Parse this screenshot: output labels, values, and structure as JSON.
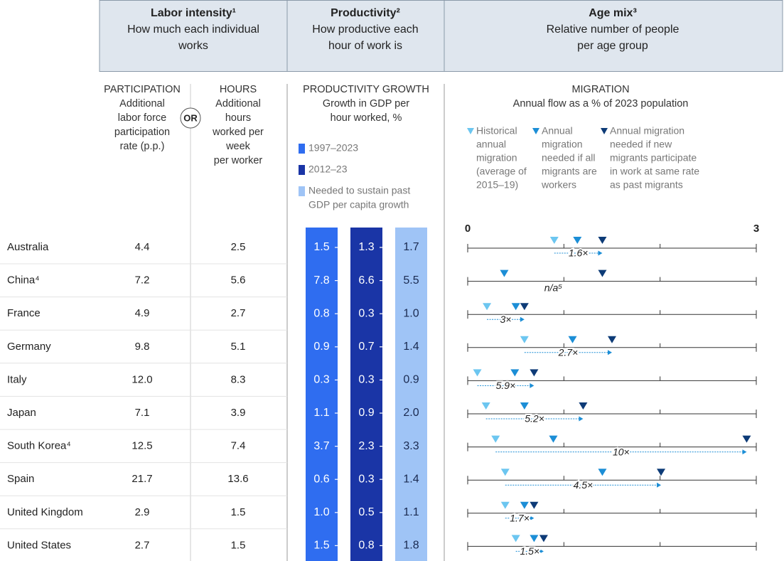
{
  "header": {
    "labor": {
      "title": "Labor intensity¹",
      "subtitle": [
        "How much each individual",
        "works"
      ]
    },
    "productivity": {
      "title": "Productivity²",
      "subtitle": [
        "How productive each",
        "hour of work is"
      ]
    },
    "age": {
      "title": "Age mix³",
      "subtitle": [
        "Relative number of people",
        "per age group"
      ]
    }
  },
  "subheaders": {
    "participation": [
      "PARTICIPATION",
      "Additional",
      "labor force",
      "participation",
      "rate (p.p.)"
    ],
    "or": "OR",
    "hours": [
      "HOURS",
      "Additional",
      "hours",
      "worked per",
      "week",
      "per worker"
    ],
    "productivity": [
      "PRODUCTIVITY GROWTH",
      "Growth in GDP per",
      "hour worked, %"
    ],
    "migration": [
      "MIGRATION",
      "Annual flow as a % of 2023 population"
    ]
  },
  "productivity_legend": [
    {
      "label": [
        "1997–2023"
      ],
      "color": "#2f6df0"
    },
    {
      "label": [
        "2012–23"
      ],
      "color": "#1a35a6"
    },
    {
      "label": [
        "Needed to sustain past",
        "GDP per capita growth"
      ],
      "color": "#9fc4f6"
    }
  ],
  "migration_legend": [
    {
      "label": [
        "Historical",
        "annual",
        "migration",
        "(average of",
        "2015–19)"
      ],
      "color": "#6cc6f0"
    },
    {
      "label": [
        "Annual",
        "migration",
        "needed if all",
        "migrants are",
        "workers"
      ],
      "color": "#1c8ed6"
    },
    {
      "label": [
        "Annual migration",
        "needed if new",
        "migrants participate",
        "in work at same rate",
        "as past migrants"
      ],
      "color": "#0d3b77"
    }
  ],
  "migration_axis": {
    "xlim": [
      0,
      3
    ],
    "xticks": [
      0,
      1,
      2,
      3
    ]
  },
  "rows": [
    {
      "country": "Australia",
      "participation": "4.4",
      "hours": "2.5",
      "productivity": [
        "1.5",
        "1.3",
        "1.7"
      ],
      "migration": [
        0.9,
        1.14,
        1.4
      ],
      "multiplier": "1.6×"
    },
    {
      "country": "China⁴",
      "participation": "7.2",
      "hours": "5.6",
      "productivity": [
        "7.8",
        "6.6",
        "5.5"
      ],
      "migration": [
        null,
        0.38,
        1.4
      ],
      "multiplier": "n/a⁵"
    },
    {
      "country": "France",
      "participation": "4.9",
      "hours": "2.7",
      "productivity": [
        "0.8",
        "0.3",
        "1.0"
      ],
      "migration": [
        0.2,
        0.5,
        0.59
      ],
      "multiplier": "3×"
    },
    {
      "country": "Germany",
      "participation": "9.8",
      "hours": "5.1",
      "productivity": [
        "0.9",
        "0.7",
        "1.4"
      ],
      "migration": [
        0.59,
        1.09,
        1.5
      ],
      "multiplier": "2.7×"
    },
    {
      "country": "Italy",
      "participation": "12.0",
      "hours": "8.3",
      "productivity": [
        "0.3",
        "0.3",
        "0.9"
      ],
      "migration": [
        0.1,
        0.49,
        0.69
      ],
      "multiplier": "5.9×"
    },
    {
      "country": "Japan",
      "participation": "7.1",
      "hours": "3.9",
      "productivity": [
        "1.1",
        "0.9",
        "2.0"
      ],
      "migration": [
        0.19,
        0.59,
        1.2
      ],
      "multiplier": "5.2×"
    },
    {
      "country": "South Korea⁴",
      "participation": "12.5",
      "hours": "7.4",
      "productivity": [
        "3.7",
        "2.3",
        "3.3"
      ],
      "migration": [
        0.29,
        0.89,
        2.9
      ],
      "multiplier": "10×"
    },
    {
      "country": "Spain",
      "participation": "21.7",
      "hours": "13.6",
      "productivity": [
        "0.6",
        "0.3",
        "1.4"
      ],
      "migration": [
        0.39,
        1.4,
        2.01
      ],
      "multiplier": "4.5×"
    },
    {
      "country": "United Kingdom",
      "participation": "2.9",
      "hours": "1.5",
      "productivity": [
        "1.0",
        "0.5",
        "1.1"
      ],
      "migration": [
        0.39,
        0.59,
        0.69
      ],
      "multiplier": "1.7×"
    },
    {
      "country": "United States",
      "participation": "2.7",
      "hours": "1.5",
      "productivity": [
        "1.5",
        "0.8",
        "1.8"
      ],
      "migration": [
        0.5,
        0.69,
        0.79
      ],
      "multiplier": "1.5×"
    }
  ]
}
